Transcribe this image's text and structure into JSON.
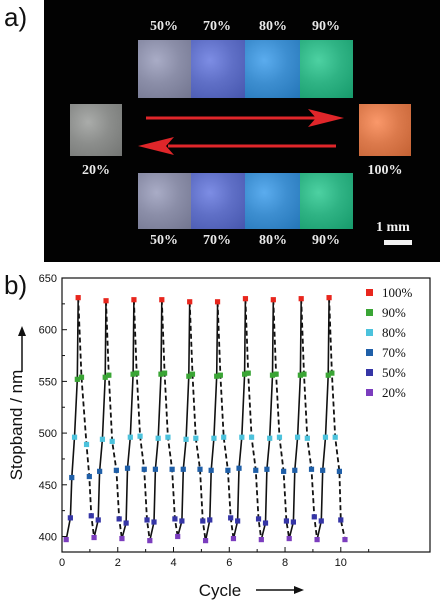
{
  "panel_a": {
    "label": "a)",
    "top_row": [
      "50%",
      "70%",
      "80%",
      "90%"
    ],
    "bottom_row": [
      "50%",
      "70%",
      "80%",
      "90%"
    ],
    "left_label": "20%",
    "right_label": "100%",
    "scale_label": "1 mm",
    "colors": {
      "s20": "#8c8e8c",
      "s50": "#8b8ea8",
      "s70": "#5f6fc6",
      "s80": "#3d8ed0",
      "s90": "#2fb384",
      "s100": "#dc7a4c",
      "arrow": "#e0262a"
    }
  },
  "panel_b": {
    "label": "b)"
  },
  "chart_data": {
    "type": "scatter",
    "xlabel": "Cycle",
    "ylabel": "Stopband / nm",
    "xlim": [
      0,
      13.2
    ],
    "ylim": [
      385,
      650
    ],
    "xticks": [
      0,
      2,
      4,
      6,
      8,
      10
    ],
    "yticks": [
      400,
      450,
      500,
      550,
      600,
      650
    ],
    "legend_position": "top-right",
    "cycle_peaks": [
      0.58,
      1.58,
      2.58,
      3.58,
      4.58,
      5.58,
      6.58,
      7.58,
      8.58,
      9.58
    ],
    "series": [
      {
        "name": "100%",
        "color": "#e8261d",
        "value": 630,
        "points": [
          [
            0.58,
            631
          ],
          [
            1.58,
            628
          ],
          [
            2.58,
            629
          ],
          [
            3.58,
            629
          ],
          [
            4.58,
            627
          ],
          [
            5.58,
            627
          ],
          [
            6.58,
            630
          ],
          [
            7.58,
            629
          ],
          [
            8.58,
            630
          ],
          [
            9.58,
            631
          ]
        ]
      },
      {
        "name": "90%",
        "color": "#3aa535",
        "value": 555,
        "points": [
          [
            0.55,
            552
          ],
          [
            0.7,
            554
          ],
          [
            1.55,
            554
          ],
          [
            1.68,
            556
          ],
          [
            2.55,
            557
          ],
          [
            2.68,
            558
          ],
          [
            3.55,
            557
          ],
          [
            3.68,
            558
          ],
          [
            4.55,
            555
          ],
          [
            4.68,
            557
          ],
          [
            5.55,
            555
          ],
          [
            5.68,
            556
          ],
          [
            6.55,
            557
          ],
          [
            6.68,
            558
          ],
          [
            7.55,
            556
          ],
          [
            7.68,
            557
          ],
          [
            8.55,
            556
          ],
          [
            8.68,
            557
          ],
          [
            9.55,
            556
          ],
          [
            9.68,
            558
          ]
        ]
      },
      {
        "name": "80%",
        "color": "#4cc2dc",
        "value": 495,
        "points": [
          [
            0.45,
            496
          ],
          [
            0.88,
            489
          ],
          [
            1.45,
            494
          ],
          [
            1.8,
            492
          ],
          [
            2.45,
            496
          ],
          [
            2.8,
            497
          ],
          [
            3.45,
            495
          ],
          [
            3.8,
            496
          ],
          [
            4.45,
            494
          ],
          [
            4.8,
            495
          ],
          [
            5.45,
            495
          ],
          [
            5.8,
            496
          ],
          [
            6.45,
            496
          ],
          [
            6.8,
            496
          ],
          [
            7.45,
            495
          ],
          [
            7.8,
            496
          ],
          [
            8.45,
            496
          ],
          [
            8.8,
            495
          ],
          [
            9.45,
            496
          ],
          [
            9.8,
            496
          ]
        ]
      },
      {
        "name": "70%",
        "color": "#1f5fa8",
        "value": 465,
        "points": [
          [
            0.35,
            457
          ],
          [
            0.98,
            458
          ],
          [
            1.35,
            463
          ],
          [
            1.95,
            464
          ],
          [
            2.35,
            466
          ],
          [
            2.95,
            465
          ],
          [
            3.35,
            465
          ],
          [
            3.95,
            465
          ],
          [
            4.35,
            465
          ],
          [
            4.95,
            465
          ],
          [
            5.35,
            464
          ],
          [
            5.95,
            464
          ],
          [
            6.35,
            466
          ],
          [
            6.95,
            464
          ],
          [
            7.35,
            465
          ],
          [
            7.95,
            463
          ],
          [
            8.35,
            464
          ],
          [
            8.95,
            465
          ],
          [
            9.35,
            464
          ],
          [
            9.95,
            463
          ]
        ]
      },
      {
        "name": "50%",
        "color": "#3535a6",
        "value": 418,
        "points": [
          [
            0.3,
            418
          ],
          [
            1.05,
            420
          ],
          [
            1.3,
            416
          ],
          [
            2.05,
            417
          ],
          [
            2.3,
            413
          ],
          [
            3.05,
            416
          ],
          [
            3.3,
            414
          ],
          [
            4.05,
            417
          ],
          [
            4.3,
            415
          ],
          [
            5.05,
            415
          ],
          [
            5.3,
            416
          ],
          [
            6.05,
            418
          ],
          [
            6.3,
            415
          ],
          [
            7.05,
            417
          ],
          [
            7.3,
            413
          ],
          [
            8.05,
            415
          ],
          [
            8.3,
            414
          ],
          [
            9.05,
            419
          ],
          [
            9.3,
            415
          ],
          [
            10.0,
            416
          ]
        ]
      },
      {
        "name": "20%",
        "color": "#7b3dbe",
        "value": 398,
        "points": [
          [
            0.15,
            397
          ],
          [
            1.15,
            399
          ],
          [
            2.15,
            398
          ],
          [
            3.15,
            396
          ],
          [
            4.15,
            400
          ],
          [
            5.15,
            396
          ],
          [
            6.15,
            398
          ],
          [
            7.15,
            397
          ],
          [
            8.15,
            398
          ],
          [
            9.15,
            397
          ],
          [
            10.15,
            397
          ]
        ]
      }
    ]
  }
}
